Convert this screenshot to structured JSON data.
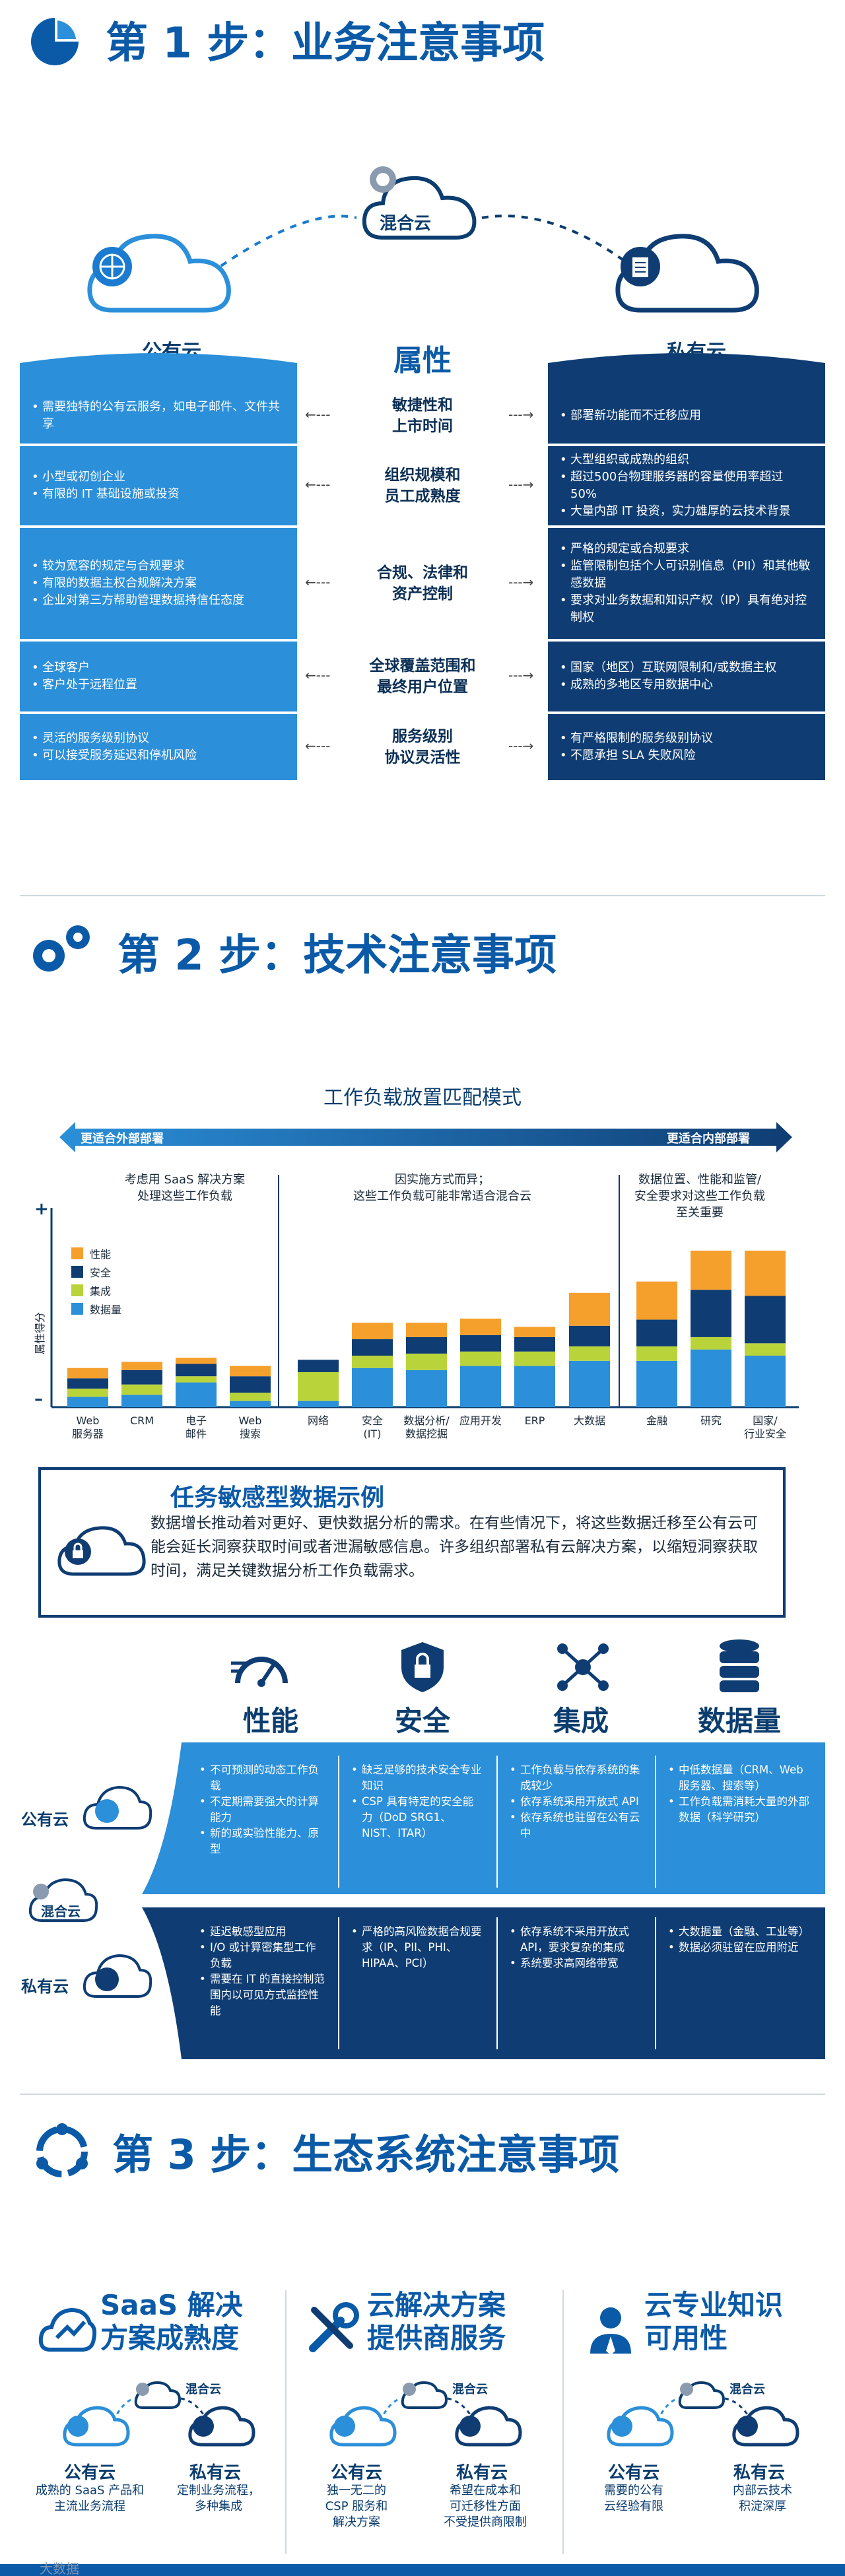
{
  "step1": {
    "title": "第 1 步：业务注意事项",
    "hybrid_label": "混合云",
    "public_label": "公有云",
    "private_label": "私有云",
    "attr_label": "属性",
    "rows": [
      {
        "left": [
          "需要独特的公有云服务，如电子邮件、文件共享"
        ],
        "center": "敏捷性和\n上市时间",
        "right": [
          "部署新功能而不迁移应用"
        ]
      },
      {
        "left": [
          "小型或初创企业",
          "有限的 IT 基础设施或投资"
        ],
        "center": "组织规模和\n员工成熟度",
        "right": [
          "大型组织或成熟的组织",
          "超过500台物理服务器的容量使用率超过 50%",
          "大量内部 IT 投资，实力雄厚的云技术背景"
        ]
      },
      {
        "left": [
          "较为宽容的规定与合规要求",
          "有限的数据主权合规解决方案",
          "企业对第三方帮助管理数据持信任态度"
        ],
        "center": "合规、法律和\n资产控制",
        "right": [
          "严格的规定或合规要求",
          "监管限制包括个人可识别信息（PII）和其他敏感数据",
          "要求对业务数据和知识产权（IP）具有绝对控制权"
        ]
      },
      {
        "left": [
          "全球客户",
          "客户处于远程位置"
        ],
        "center": "全球覆盖范围和\n最终用户位置",
        "right": [
          "国家（地区）互联网限制和/或数据主权",
          "成熟的多地区专用数据中心"
        ]
      },
      {
        "left": [
          "灵活的服务级别协议",
          "可以接受服务延迟和停机风险"
        ],
        "center": "服务级别\n协议灵活性",
        "right": [
          "有严格限制的服务级别协议",
          "不愿承担 SLA 失败风险"
        ]
      }
    ]
  },
  "step2": {
    "title": "第 2 步：技术注意事项",
    "chart_title": "工作负载放置匹配模式",
    "arrow_left": "更适合外部部署",
    "arrow_right": "更适合内部部署",
    "group_notes": [
      "考虑用 SaaS 解决方案\n处理这些工作负载",
      "因实施方式而异；\n这些工作负载可能非常适合混合云",
      "数据位置、性能和监管/\n安全要求对这些工作负载\n至关重要"
    ],
    "y_axis_label": "属性得分",
    "y_plus": "+",
    "y_minus": "–",
    "legend": [
      "性能",
      "安全",
      "集成",
      "数据量"
    ],
    "colors": {
      "perf": "#f5a02d",
      "sec": "#0f3d73",
      "int": "#b9d43a",
      "vol": "#2b8fd9"
    },
    "chart_data": {
      "type": "bar",
      "stacked": true,
      "categories": [
        "Web\n服务器",
        "CRM",
        "电子\n邮件",
        "Web\n搜索",
        "网络",
        "安全\n(IT)",
        "数据分析/\n数据挖掘",
        "应用开发",
        "ERP",
        "大数据",
        "金融",
        "研究",
        "国家/\n行业安全"
      ],
      "series": [
        {
          "name": "数据量",
          "values": [
            1.0,
            1.2,
            2.4,
            0.6,
            0.6,
            3.8,
            3.6,
            4.0,
            4.0,
            4.5,
            4.5,
            5.6,
            5.0
          ]
        },
        {
          "name": "集成",
          "values": [
            0.8,
            1.0,
            0.6,
            0.8,
            2.8,
            1.2,
            1.6,
            1.4,
            1.4,
            1.4,
            1.4,
            1.2,
            1.2
          ]
        },
        {
          "name": "安全",
          "values": [
            1.0,
            1.4,
            1.2,
            1.6,
            1.2,
            1.6,
            1.6,
            1.6,
            1.4,
            2.0,
            2.6,
            4.6,
            4.6
          ]
        },
        {
          "name": "性能",
          "values": [
            1.0,
            0.8,
            0.6,
            1.0,
            0.0,
            1.6,
            1.4,
            1.6,
            1.0,
            3.2,
            3.7,
            3.8,
            4.4
          ]
        }
      ]
    },
    "case_title": "任务敏感型数据示例",
    "case_text": "数据增长推动着对更好、更快数据分析的需求。在有些情况下，将这些数据迁移至公有云可能会延长洞察获取时间或者泄漏敏感信息。许多组织部署私有云解决方案，以缩短洞察获取时间，满足关键数据分析工作负载需求。",
    "heads": [
      "性能",
      "安全",
      "集成",
      "数据量"
    ],
    "side_public": "公有云",
    "side_hybrid": "混合云",
    "side_private": "私有云",
    "public_cells": [
      [
        "不可预测的动态工作负载",
        "不定期需要强大的计算能力",
        "新的或实验性能力、原型"
      ],
      [
        "缺乏足够的技术安全专业知识",
        "CSP 具有特定的安全能力（DoD SRG1、NIST、ITAR）"
      ],
      [
        "工作负载与依存系统的集成较少",
        "依存系统采用开放式 API",
        "依存系统也驻留在公有云中"
      ],
      [
        "中低数据量（CRM、Web 服务器、搜索等）",
        "工作负载需消耗大量的外部数据（科学研究）"
      ]
    ],
    "private_cells": [
      [
        "延迟敏感型应用",
        "I/O 或计算密集型工作负载",
        "需要在 IT 的直接控制范围内以可见方式监控性能"
      ],
      [
        "严格的高风险数据合规要求（IP、PII、PHI、HIPAA、PCI）"
      ],
      [
        "依存系统不采用开放式 API，要求复杂的集成",
        "系统要求高网络带宽"
      ],
      [
        "大数据量（金融、工业等）",
        "数据必须驻留在应用附近"
      ]
    ]
  },
  "step3": {
    "title": "第 3 步：生态系统注意事项",
    "cols": [
      {
        "title": "SaaS 解决\n方案成熟度",
        "hybrid": "混合云",
        "public": "公有云",
        "private": "私有云",
        "public_sub": "成熟的 SaaS 产品和\n主流业务流程",
        "private_sub": "定制业务流程，\n多种集成"
      },
      {
        "title": "云解决方案\n提供商服务",
        "hybrid": "混合云",
        "public": "公有云",
        "private": "私有云",
        "public_sub": "独一无二的\nCSP 服务和\n解决方案",
        "private_sub": "希望在成本和\n可迁移性方面\n不受提供商限制"
      },
      {
        "title": "云专业知识\n可用性",
        "hybrid": "混合云",
        "public": "公有云",
        "private": "私有云",
        "public_sub": "需要的公有\n云经验有限",
        "private_sub": "内部云技术\n积淀深厚"
      }
    ],
    "watermark": "大数据"
  }
}
